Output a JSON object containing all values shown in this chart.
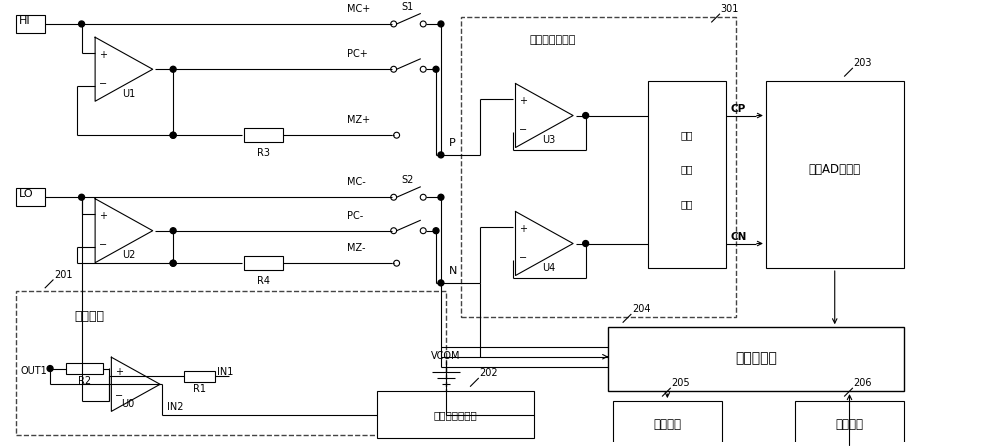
{
  "bg_color": "#ffffff",
  "line_color": "#000000",
  "figure_size": [
    10.0,
    4.47
  ],
  "dpi": 100,
  "labels": {
    "HI": "HI",
    "LO": "LO",
    "U1": "U1",
    "U2": "U2",
    "U3": "U3",
    "U4": "U4",
    "U0": "U0",
    "R1": "R1",
    "R2": "R2",
    "R3": "R3",
    "R4": "R4",
    "MCp": "MC+",
    "PCp": "PC+",
    "MZp": "MZ+",
    "MCm": "MC-",
    "PCm": "PC-",
    "MZm": "MZ-",
    "S1": "S1",
    "S2": "S2",
    "P": "P",
    "N": "N",
    "CP": "CP",
    "CN": "CN",
    "VCOM": "VCOM",
    "OUT1": "OUT1",
    "IN1": "IN1",
    "IN2": "IN2",
    "label_201": "201",
    "label_202": "202",
    "label_203": "203",
    "label_204": "204",
    "label_205": "205",
    "label_206": "206",
    "label_301": "301",
    "box_feedforward": "前馈网络",
    "box_pgabuffer": "程控增益缓冲器",
    "box_atten_line1": "程控",
    "box_atten_line2": "衰减",
    "box_atten_line3": "网络",
    "box_diffad": "差分AD转换器",
    "box_processor": "处理器系统",
    "box_output": "输出装置",
    "box_input": "输入装置",
    "box_vcom": "共模电压发生器"
  }
}
